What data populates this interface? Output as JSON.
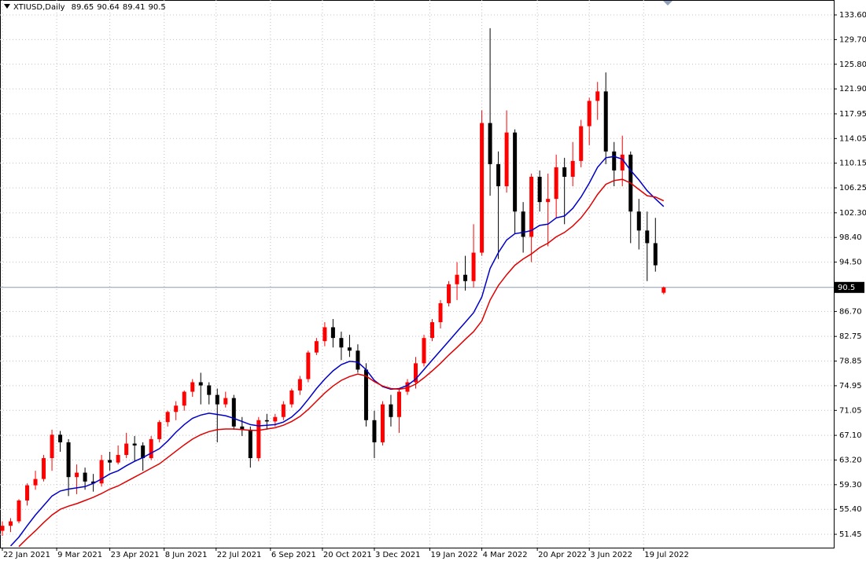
{
  "chart_data": {
    "type": "candlestick",
    "title": "XTIUSD,Daily",
    "x": [
      "2021-01-22",
      "2021-01-29",
      "2021-02-05",
      "2021-02-12",
      "2021-02-19",
      "2021-02-26",
      "2021-03-05",
      "2021-03-12",
      "2021-03-19",
      "2021-03-26",
      "2021-04-02",
      "2021-04-09",
      "2021-04-16",
      "2021-04-23",
      "2021-04-30",
      "2021-05-07",
      "2021-05-14",
      "2021-05-21",
      "2021-05-28",
      "2021-06-04",
      "2021-06-11",
      "2021-06-18",
      "2021-06-25",
      "2021-07-02",
      "2021-07-09",
      "2021-07-16",
      "2021-07-23",
      "2021-07-30",
      "2021-08-06",
      "2021-08-13",
      "2021-08-20",
      "2021-08-27",
      "2021-09-03",
      "2021-09-10",
      "2021-09-17",
      "2021-09-24",
      "2021-10-01",
      "2021-10-08",
      "2021-10-15",
      "2021-10-22",
      "2021-10-29",
      "2021-11-05",
      "2021-11-12",
      "2021-11-19",
      "2021-11-26",
      "2021-12-03",
      "2021-12-10",
      "2021-12-17",
      "2021-12-24",
      "2021-12-31",
      "2022-01-07",
      "2022-01-14",
      "2022-01-21",
      "2022-01-28",
      "2022-02-04",
      "2022-02-11",
      "2022-02-18",
      "2022-02-25",
      "2022-03-04",
      "2022-03-11",
      "2022-03-18",
      "2022-03-25",
      "2022-04-01",
      "2022-04-08",
      "2022-04-15",
      "2022-04-22",
      "2022-04-29",
      "2022-05-06",
      "2022-05-13",
      "2022-05-20",
      "2022-05-27",
      "2022-06-03",
      "2022-06-10",
      "2022-06-17",
      "2022-06-24",
      "2022-07-01",
      "2022-07-08",
      "2022-07-15",
      "2022-07-22",
      "2022-07-29",
      "2022-08-05"
    ],
    "open": [
      52.0,
      52.8,
      53.5,
      56.8,
      59.2,
      60.2,
      63.5,
      67.2,
      66.0,
      60.5,
      61.2,
      59.8,
      59.5,
      63.2,
      62.8,
      64.0,
      65.8,
      65.5,
      63.5,
      66.5,
      69.2,
      70.8,
      71.8,
      74.0,
      75.5,
      75.0,
      73.5,
      72.0,
      73.0,
      68.5,
      68.0,
      63.5,
      69.5,
      69.3,
      70.0,
      72.0,
      74.2,
      76.0,
      80.2,
      82.0,
      84.2,
      82.5,
      81.0,
      80.5,
      77.5,
      69.5,
      66.0,
      72.0,
      70.0,
      74.0,
      75.5,
      78.5,
      82.5,
      85.0,
      88.0,
      91.0,
      92.5,
      91.5,
      96.0,
      116.5,
      110.0,
      106.5,
      115.0,
      102.5,
      98.5,
      108.0,
      104.0,
      104.5,
      109.5,
      108.0,
      110.5,
      116.0,
      120.0,
      121.5,
      112.0,
      109.0,
      111.5,
      102.5,
      99.5,
      97.5,
      89.65
    ],
    "high": [
      53.5,
      54.0,
      57.0,
      59.5,
      61.5,
      64.0,
      68.0,
      67.8,
      66.5,
      62.5,
      62.0,
      61.0,
      64.0,
      64.5,
      65.5,
      67.5,
      67.0,
      66.0,
      67.0,
      69.5,
      71.0,
      72.5,
      74.2,
      76.0,
      77.0,
      75.5,
      74.5,
      74.0,
      73.5,
      70.0,
      68.5,
      70.0,
      70.5,
      70.5,
      72.5,
      74.5,
      76.5,
      80.5,
      82.5,
      85.0,
      85.5,
      83.5,
      83.0,
      81.5,
      78.5,
      71.0,
      72.5,
      73.5,
      74.5,
      76.0,
      79.5,
      83.0,
      85.5,
      88.5,
      91.5,
      94.5,
      95.5,
      100.5,
      118.5,
      131.5,
      112.0,
      118.5,
      115.5,
      104.0,
      108.5,
      109.0,
      108.5,
      111.5,
      111.0,
      113.5,
      117.0,
      120.5,
      123.0,
      124.5,
      113.5,
      114.5,
      112.0,
      104.5,
      102.5,
      101.5,
      90.64
    ],
    "low": [
      51.2,
      51.8,
      53.2,
      56.0,
      58.5,
      59.8,
      61.5,
      64.5,
      57.5,
      57.8,
      58.5,
      58.2,
      59.0,
      61.5,
      62.5,
      63.5,
      63.0,
      61.5,
      63.2,
      66.0,
      68.5,
      69.5,
      71.0,
      73.2,
      72.0,
      72.0,
      66.0,
      71.5,
      68.0,
      67.0,
      62.0,
      63.0,
      68.0,
      68.5,
      69.5,
      71.5,
      73.5,
      75.5,
      79.8,
      81.2,
      81.0,
      79.0,
      79.5,
      77.0,
      68.5,
      63.5,
      65.5,
      68.5,
      67.5,
      73.5,
      74.5,
      78.0,
      82.0,
      84.0,
      87.5,
      88.5,
      90.0,
      90.5,
      95.5,
      105.0,
      95.0,
      105.5,
      99.0,
      96.0,
      94.5,
      102.5,
      97.0,
      101.5,
      100.5,
      106.5,
      109.5,
      113.0,
      117.0,
      110.0,
      106.5,
      106.5,
      97.5,
      96.5,
      91.5,
      93.0,
      89.41
    ],
    "close": [
      52.8,
      53.5,
      56.8,
      59.2,
      60.2,
      63.5,
      67.2,
      66.0,
      60.5,
      61.2,
      59.8,
      59.5,
      63.2,
      62.8,
      64.0,
      65.8,
      65.5,
      63.5,
      66.5,
      69.2,
      70.8,
      71.8,
      74.0,
      75.5,
      75.0,
      73.5,
      72.0,
      73.0,
      68.5,
      68.0,
      63.5,
      69.5,
      69.3,
      70.0,
      72.0,
      74.2,
      76.0,
      80.2,
      82.0,
      84.2,
      82.5,
      81.0,
      80.5,
      77.5,
      69.5,
      66.0,
      72.0,
      70.0,
      74.0,
      75.5,
      78.5,
      82.5,
      85.0,
      88.0,
      91.0,
      92.5,
      91.5,
      96.0,
      116.5,
      110.0,
      106.5,
      115.0,
      102.5,
      98.5,
      108.0,
      104.0,
      104.5,
      109.5,
      108.0,
      110.5,
      116.0,
      120.0,
      121.5,
      112.0,
      109.0,
      111.5,
      102.5,
      99.5,
      97.5,
      94.0,
      90.5
    ],
    "up_color": "#ff0000",
    "down_color": "#000000",
    "lines": [
      {
        "color": "#0000c8",
        "values": [
          null,
          49.6,
          51.0,
          52.8,
          54.5,
          56.0,
          57.5,
          58.3,
          58.6,
          58.8,
          59.0,
          59.5,
          60.2,
          61.0,
          61.5,
          62.3,
          63.0,
          63.6,
          64.3,
          65.0,
          66.2,
          67.6,
          68.8,
          69.8,
          70.3,
          70.6,
          70.4,
          70.2,
          69.8,
          69.3,
          68.8,
          68.6,
          68.7,
          68.8,
          69.2,
          70.0,
          71.2,
          72.8,
          74.5,
          76.0,
          77.3,
          78.3,
          78.8,
          78.7,
          77.5,
          75.8,
          74.8,
          74.4,
          74.5,
          75.0,
          76.0,
          77.5,
          79.0,
          80.5,
          82.0,
          83.5,
          85.0,
          86.5,
          89.0,
          93.5,
          96.0,
          98.0,
          99.0,
          99.2,
          99.5,
          100.3,
          100.5,
          101.5,
          101.8,
          103.0,
          104.8,
          107.0,
          109.5,
          111.0,
          111.2,
          110.8,
          109.0,
          107.5,
          105.8,
          104.5,
          103.3
        ]
      },
      {
        "color": "#e00000",
        "values": [
          null,
          null,
          49.5,
          50.8,
          52.0,
          53.3,
          54.5,
          55.4,
          55.9,
          56.3,
          56.8,
          57.3,
          57.9,
          58.6,
          59.1,
          59.8,
          60.5,
          61.2,
          61.9,
          62.6,
          63.6,
          64.6,
          65.6,
          66.5,
          67.2,
          67.7,
          68.0,
          68.1,
          68.1,
          68.0,
          67.9,
          67.9,
          68.1,
          68.3,
          68.7,
          69.3,
          70.1,
          71.2,
          72.5,
          73.8,
          74.9,
          75.8,
          76.4,
          76.8,
          76.5,
          75.6,
          74.9,
          74.5,
          74.4,
          74.6,
          75.2,
          76.2,
          77.3,
          78.5,
          79.8,
          81.0,
          82.3,
          83.5,
          85.2,
          88.5,
          90.8,
          92.5,
          94.0,
          95.0,
          95.8,
          96.8,
          97.5,
          98.5,
          99.2,
          100.2,
          101.5,
          103.2,
          105.2,
          106.8,
          107.4,
          107.6,
          107.0,
          106.0,
          105.0,
          104.8,
          104.2
        ]
      }
    ],
    "xlim": [
      "2021-01-20",
      "2022-12-27"
    ],
    "xticks": [
      {
        "value": "2021-01-22",
        "label": "22 Jan 2021"
      },
      {
        "value": "2021-03-09",
        "label": "9 Mar 2021"
      },
      {
        "value": "2021-04-23",
        "label": "23 Apr 2021"
      },
      {
        "value": "2021-06-08",
        "label": "8 Jun 2021"
      },
      {
        "value": "2021-07-22",
        "label": "22 Jul 2021"
      },
      {
        "value": "2021-09-06",
        "label": "6 Sep 2021"
      },
      {
        "value": "2021-10-20",
        "label": "20 Oct 2021"
      },
      {
        "value": "2021-12-03",
        "label": "3 Dec 2021"
      },
      {
        "value": "2022-01-19",
        "label": "19 Jan 2022"
      },
      {
        "value": "2022-03-04",
        "label": "4 Mar 2022"
      },
      {
        "value": "2022-04-20",
        "label": "20 Apr 2022"
      },
      {
        "value": "2022-06-03",
        "label": "3 Jun 2022"
      },
      {
        "value": "2022-07-19",
        "label": "19 Jul 2022"
      }
    ],
    "ylim": [
      49.34,
      135.96
    ],
    "yticks": [
      {
        "value": 133.6,
        "label": "133.60"
      },
      {
        "value": 129.7,
        "label": "129.70"
      },
      {
        "value": 125.8,
        "label": "125.80"
      },
      {
        "value": 121.9,
        "label": "121.90"
      },
      {
        "value": 117.95,
        "label": "117.95"
      },
      {
        "value": 114.05,
        "label": "114.05"
      },
      {
        "value": 110.15,
        "label": "110.15"
      },
      {
        "value": 106.25,
        "label": "106.25"
      },
      {
        "value": 102.3,
        "label": "102.30"
      },
      {
        "value": 98.4,
        "label": "98.40"
      },
      {
        "value": 94.5,
        "label": "94.50"
      },
      {
        "value": 86.7,
        "label": "86.70"
      },
      {
        "value": 82.75,
        "label": "82.75"
      },
      {
        "value": 78.85,
        "label": "78.85"
      },
      {
        "value": 74.95,
        "label": "74.95"
      },
      {
        "value": 71.05,
        "label": "71.05"
      },
      {
        "value": 67.1,
        "label": "67.10"
      },
      {
        "value": 63.2,
        "label": "63.20"
      },
      {
        "value": 59.3,
        "label": "59.30"
      },
      {
        "value": 55.4,
        "label": "55.40"
      },
      {
        "value": 51.45,
        "label": "51.45"
      }
    ],
    "grid": true
  }
}
